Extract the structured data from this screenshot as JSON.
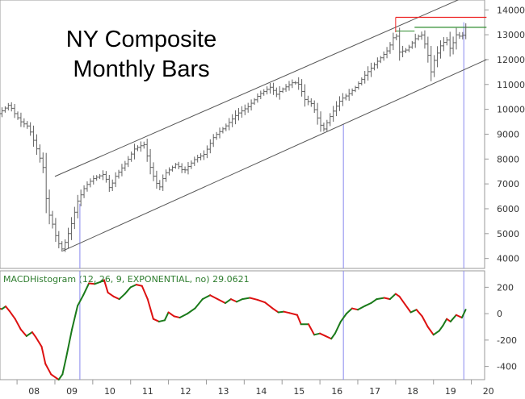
{
  "chart_data": [
    {
      "type": "ohlc",
      "title": "NY Composite",
      "subtitle": "Monthly Bars",
      "ylim": [
        3600,
        14300
      ],
      "y_ticks": [
        4000,
        5000,
        6000,
        7000,
        8000,
        9000,
        10000,
        11000,
        12000,
        13000,
        14000
      ],
      "x_ticks": [
        "08",
        "09",
        "10",
        "11",
        "12",
        "13",
        "14",
        "15",
        "16",
        "17",
        "18",
        "19",
        "20"
      ],
      "close_anchors": [
        [
          2007.5,
          9800
        ],
        [
          2007.8,
          10200
        ],
        [
          2007.9,
          9900
        ],
        [
          2008.1,
          9500
        ],
        [
          2008.3,
          9300
        ],
        [
          2008.5,
          8500
        ],
        [
          2008.7,
          7600
        ],
        [
          2008.8,
          5900
        ],
        [
          2008.9,
          5600
        ],
        [
          2009.0,
          5000
        ],
        [
          2009.1,
          4600
        ],
        [
          2009.2,
          4350
        ],
        [
          2009.4,
          5200
        ],
        [
          2009.6,
          6300
        ],
        [
          2009.8,
          6900
        ],
        [
          2010.0,
          7200
        ],
        [
          2010.3,
          7400
        ],
        [
          2010.45,
          6800
        ],
        [
          2010.6,
          7300
        ],
        [
          2010.9,
          7900
        ],
        [
          2011.1,
          8400
        ],
        [
          2011.35,
          8600
        ],
        [
          2011.55,
          7500
        ],
        [
          2011.75,
          6800
        ],
        [
          2011.9,
          7400
        ],
        [
          2012.2,
          7800
        ],
        [
          2012.4,
          7500
        ],
        [
          2012.7,
          8000
        ],
        [
          2012.95,
          8200
        ],
        [
          2013.2,
          8900
        ],
        [
          2013.5,
          9300
        ],
        [
          2013.8,
          9800
        ],
        [
          2014.1,
          10100
        ],
        [
          2014.4,
          10600
        ],
        [
          2014.7,
          10900
        ],
        [
          2014.85,
          10600
        ],
        [
          2015.0,
          10800
        ],
        [
          2015.3,
          11100
        ],
        [
          2015.45,
          11000
        ],
        [
          2015.6,
          10400
        ],
        [
          2015.8,
          10200
        ],
        [
          2016.0,
          9400
        ],
        [
          2016.1,
          9200
        ],
        [
          2016.3,
          9800
        ],
        [
          2016.55,
          10400
        ],
        [
          2016.75,
          10600
        ],
        [
          2016.95,
          10900
        ],
        [
          2017.2,
          11400
        ],
        [
          2017.5,
          11900
        ],
        [
          2017.8,
          12400
        ],
        [
          2018.0,
          13100
        ],
        [
          2018.1,
          12300
        ],
        [
          2018.3,
          12400
        ],
        [
          2018.55,
          12900
        ],
        [
          2018.7,
          13000
        ],
        [
          2018.85,
          12200
        ],
        [
          2018.95,
          11400
        ],
        [
          2019.0,
          11900
        ],
        [
          2019.2,
          12600
        ],
        [
          2019.35,
          12800
        ],
        [
          2019.45,
          12400
        ],
        [
          2019.6,
          13000
        ],
        [
          2019.75,
          12900
        ],
        [
          2019.85,
          13300
        ]
      ],
      "upper_channel": [
        [
          2009.0,
          7300
        ],
        [
          2019.8,
          14500
        ]
      ],
      "lower_channel": [
        [
          2009.2,
          4300
        ],
        [
          2020.4,
          12000
        ]
      ],
      "resistance_red": {
        "y": 13700,
        "x_from": 2018.0,
        "x_to": 2020.4
      },
      "resistance_green": {
        "y": 13300,
        "x_from": 2018.5,
        "x_to": 2020.4
      },
      "support_green": {
        "y": 13150,
        "x_from": 2018.0,
        "x_to": 2018.5
      }
    },
    {
      "type": "line",
      "label": "MACDHistogram (12, 26, 9, EXPONENTIAL, no) 29.0621",
      "ylim": [
        -500,
        300
      ],
      "y_ticks": [
        200,
        0,
        -200,
        -400
      ],
      "x_ticks": [
        "08",
        "09",
        "10",
        "11",
        "12",
        "13",
        "14",
        "15",
        "16",
        "17",
        "18",
        "19",
        "20"
      ],
      "points": [
        [
          2007.5,
          40
        ],
        [
          2007.6,
          35
        ],
        [
          2007.7,
          55
        ],
        [
          2007.8,
          20
        ],
        [
          2007.95,
          -40
        ],
        [
          2008.1,
          -120
        ],
        [
          2008.25,
          -170
        ],
        [
          2008.4,
          -140
        ],
        [
          2008.5,
          -180
        ],
        [
          2008.65,
          -250
        ],
        [
          2008.75,
          -380
        ],
        [
          2008.9,
          -460
        ],
        [
          2009.1,
          -500
        ],
        [
          2009.2,
          -460
        ],
        [
          2009.3,
          -330
        ],
        [
          2009.45,
          -120
        ],
        [
          2009.6,
          60
        ],
        [
          2009.75,
          140
        ],
        [
          2009.9,
          230
        ],
        [
          2010.05,
          225
        ],
        [
          2010.2,
          240
        ],
        [
          2010.3,
          255
        ],
        [
          2010.4,
          160
        ],
        [
          2010.55,
          130
        ],
        [
          2010.7,
          110
        ],
        [
          2010.85,
          150
        ],
        [
          2011.0,
          200
        ],
        [
          2011.15,
          220
        ],
        [
          2011.3,
          210
        ],
        [
          2011.45,
          110
        ],
        [
          2011.6,
          -40
        ],
        [
          2011.75,
          -60
        ],
        [
          2011.9,
          -50
        ],
        [
          2012.0,
          10
        ],
        [
          2012.15,
          -20
        ],
        [
          2012.3,
          -30
        ],
        [
          2012.5,
          0
        ],
        [
          2012.7,
          40
        ],
        [
          2012.9,
          110
        ],
        [
          2013.1,
          140
        ],
        [
          2013.3,
          110
        ],
        [
          2013.5,
          80
        ],
        [
          2013.65,
          110
        ],
        [
          2013.8,
          90
        ],
        [
          2013.95,
          110
        ],
        [
          2014.15,
          120
        ],
        [
          2014.35,
          105
        ],
        [
          2014.55,
          85
        ],
        [
          2014.75,
          40
        ],
        [
          2014.9,
          10
        ],
        [
          2015.05,
          15
        ],
        [
          2015.2,
          5
        ],
        [
          2015.4,
          -10
        ],
        [
          2015.5,
          -80
        ],
        [
          2015.7,
          -80
        ],
        [
          2015.85,
          -160
        ],
        [
          2016.0,
          -150
        ],
        [
          2016.15,
          -170
        ],
        [
          2016.3,
          -190
        ],
        [
          2016.4,
          -150
        ],
        [
          2016.55,
          -60
        ],
        [
          2016.7,
          0
        ],
        [
          2016.85,
          40
        ],
        [
          2017.0,
          30
        ],
        [
          2017.2,
          60
        ],
        [
          2017.35,
          80
        ],
        [
          2017.5,
          110
        ],
        [
          2017.7,
          120
        ],
        [
          2017.85,
          110
        ],
        [
          2018.0,
          150
        ],
        [
          2018.1,
          130
        ],
        [
          2018.25,
          70
        ],
        [
          2018.4,
          10
        ],
        [
          2018.55,
          30
        ],
        [
          2018.7,
          -20
        ],
        [
          2018.85,
          -100
        ],
        [
          2019.0,
          -160
        ],
        [
          2019.15,
          -130
        ],
        [
          2019.25,
          -90
        ],
        [
          2019.35,
          -40
        ],
        [
          2019.45,
          -60
        ],
        [
          2019.6,
          -10
        ],
        [
          2019.75,
          -30
        ],
        [
          2019.85,
          30
        ]
      ],
      "positive_color": "#1a7a1a",
      "negative_color": "#dd1111"
    }
  ],
  "markers": [
    2009.66,
    2016.62,
    2019.8
  ],
  "colors": {
    "price_bars": "#606060",
    "channel": "#555555",
    "red_line": "#ee2222",
    "green_line": "#2e8b2e",
    "marker": "#8888ee",
    "border": "#999999",
    "macd_label": "#2e7d2e"
  }
}
